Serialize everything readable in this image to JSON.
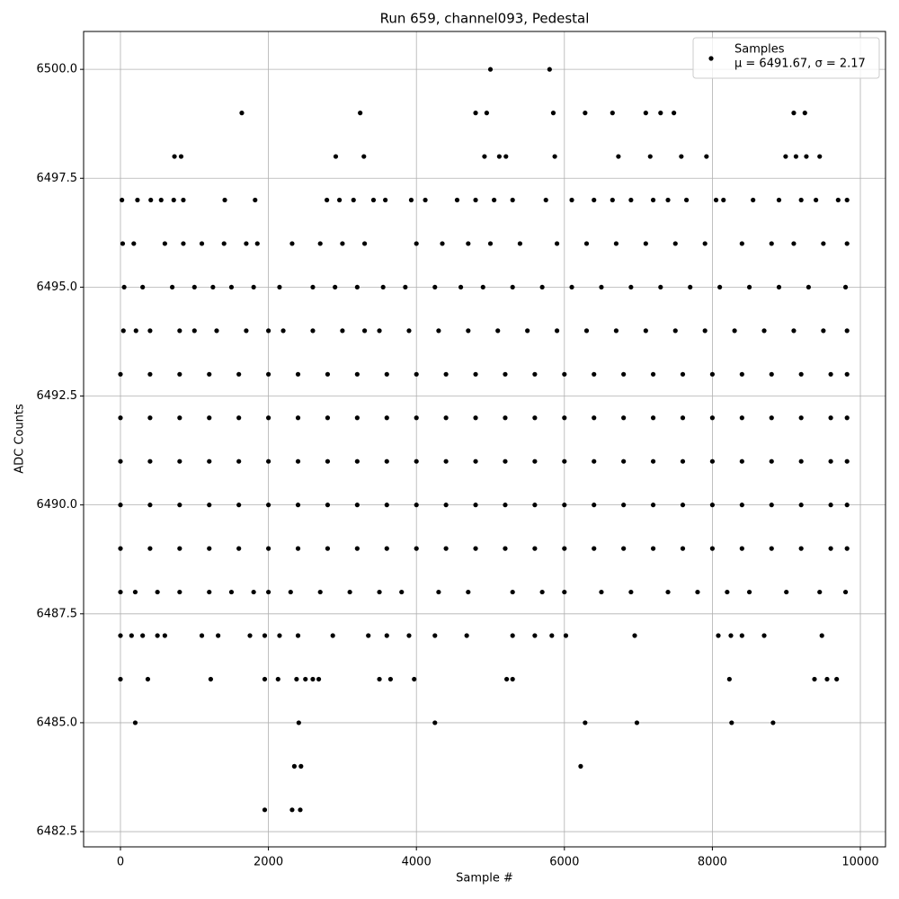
{
  "chart_data": {
    "type": "scatter",
    "title": "Run 659, channel093, Pedestal",
    "x_label": "Sample #",
    "y_label": "ADC Counts",
    "series_name": "Samples",
    "annotation": "μ = 6491.67, σ = 2.17",
    "color": "#000000",
    "grid": true,
    "legend": "upper right",
    "xlim": [
      -498,
      10340
    ],
    "ylim": [
      6482.15,
      6500.87
    ],
    "xticks": [
      0,
      2000,
      4000,
      6000,
      8000,
      10000
    ],
    "yticks": [
      {
        "value": 6482.5,
        "label": "6482.5"
      },
      {
        "value": 6485,
        "label": "6485.0"
      },
      {
        "value": 6487.5,
        "label": "6487.5"
      },
      {
        "value": 6490,
        "label": "6490.0"
      },
      {
        "value": 6492.5,
        "label": "6492.5"
      },
      {
        "value": 6495,
        "label": "6495.0"
      },
      {
        "value": 6497.5,
        "label": "6497.5"
      },
      {
        "value": 6500,
        "label": "6500.0"
      }
    ],
    "points": [
      [
        5000,
        6500
      ],
      [
        5800,
        6500
      ],
      [
        1640,
        6499
      ],
      [
        3240,
        6499
      ],
      [
        4800,
        6499
      ],
      [
        4950,
        6499
      ],
      [
        5850,
        6499
      ],
      [
        6280,
        6499
      ],
      [
        6650,
        6499
      ],
      [
        7100,
        6499
      ],
      [
        7300,
        6499
      ],
      [
        7480,
        6499
      ],
      [
        9100,
        6499
      ],
      [
        9250,
        6499
      ],
      [
        730,
        6498
      ],
      [
        820,
        6498
      ],
      [
        2910,
        6498
      ],
      [
        3290,
        6498
      ],
      [
        4920,
        6498
      ],
      [
        5120,
        6498
      ],
      [
        5210,
        6498
      ],
      [
        5870,
        6498
      ],
      [
        6730,
        6498
      ],
      [
        7160,
        6498
      ],
      [
        7580,
        6498
      ],
      [
        7920,
        6498
      ],
      [
        8990,
        6498
      ],
      [
        9130,
        6498
      ],
      [
        9270,
        6498
      ],
      [
        9450,
        6498
      ],
      [
        20,
        6497
      ],
      [
        230,
        6497
      ],
      [
        410,
        6497
      ],
      [
        550,
        6497
      ],
      [
        720,
        6497
      ],
      [
        850,
        6497
      ],
      [
        1410,
        6497
      ],
      [
        1820,
        6497
      ],
      [
        2790,
        6497
      ],
      [
        2960,
        6497
      ],
      [
        3150,
        6497
      ],
      [
        3420,
        6497
      ],
      [
        3580,
        6497
      ],
      [
        3930,
        6497
      ],
      [
        4120,
        6497
      ],
      [
        4550,
        6497
      ],
      [
        4800,
        6497
      ],
      [
        5050,
        6497
      ],
      [
        5300,
        6497
      ],
      [
        5750,
        6497
      ],
      [
        6100,
        6497
      ],
      [
        6400,
        6497
      ],
      [
        6650,
        6497
      ],
      [
        6900,
        6497
      ],
      [
        7200,
        6497
      ],
      [
        7400,
        6497
      ],
      [
        7650,
        6497
      ],
      [
        8050,
        6497
      ],
      [
        8150,
        6497
      ],
      [
        8550,
        6497
      ],
      [
        8900,
        6497
      ],
      [
        9200,
        6497
      ],
      [
        9400,
        6497
      ],
      [
        9700,
        6497
      ],
      [
        9820,
        6497
      ],
      [
        30,
        6496
      ],
      [
        180,
        6496
      ],
      [
        600,
        6496
      ],
      [
        850,
        6496
      ],
      [
        1100,
        6496
      ],
      [
        1400,
        6496
      ],
      [
        1700,
        6496
      ],
      [
        1850,
        6496
      ],
      [
        2320,
        6496
      ],
      [
        2700,
        6496
      ],
      [
        3000,
        6496
      ],
      [
        3300,
        6496
      ],
      [
        4000,
        6496
      ],
      [
        4350,
        6496
      ],
      [
        4700,
        6496
      ],
      [
        5000,
        6496
      ],
      [
        5400,
        6496
      ],
      [
        5900,
        6496
      ],
      [
        6300,
        6496
      ],
      [
        6700,
        6496
      ],
      [
        7100,
        6496
      ],
      [
        7500,
        6496
      ],
      [
        7900,
        6496
      ],
      [
        8400,
        6496
      ],
      [
        8800,
        6496
      ],
      [
        9100,
        6496
      ],
      [
        9500,
        6496
      ],
      [
        9820,
        6496
      ],
      [
        50,
        6495
      ],
      [
        300,
        6495
      ],
      [
        700,
        6495
      ],
      [
        1000,
        6495
      ],
      [
        1250,
        6495
      ],
      [
        1500,
        6495
      ],
      [
        1800,
        6495
      ],
      [
        2150,
        6495
      ],
      [
        2600,
        6495
      ],
      [
        2900,
        6495
      ],
      [
        3200,
        6495
      ],
      [
        3550,
        6495
      ],
      [
        3850,
        6495
      ],
      [
        4250,
        6495
      ],
      [
        4600,
        6495
      ],
      [
        4900,
        6495
      ],
      [
        5300,
        6495
      ],
      [
        5700,
        6495
      ],
      [
        6100,
        6495
      ],
      [
        6500,
        6495
      ],
      [
        6900,
        6495
      ],
      [
        7300,
        6495
      ],
      [
        7700,
        6495
      ],
      [
        8100,
        6495
      ],
      [
        8500,
        6495
      ],
      [
        8900,
        6495
      ],
      [
        9300,
        6495
      ],
      [
        9800,
        6495
      ],
      [
        40,
        6494
      ],
      [
        210,
        6494
      ],
      [
        400,
        6494
      ],
      [
        800,
        6494
      ],
      [
        1000,
        6494
      ],
      [
        1300,
        6494
      ],
      [
        1700,
        6494
      ],
      [
        2000,
        6494
      ],
      [
        2200,
        6494
      ],
      [
        2600,
        6494
      ],
      [
        3000,
        6494
      ],
      [
        3300,
        6494
      ],
      [
        3500,
        6494
      ],
      [
        3900,
        6494
      ],
      [
        4300,
        6494
      ],
      [
        4700,
        6494
      ],
      [
        5100,
        6494
      ],
      [
        5500,
        6494
      ],
      [
        5900,
        6494
      ],
      [
        6300,
        6494
      ],
      [
        6700,
        6494
      ],
      [
        7100,
        6494
      ],
      [
        7500,
        6494
      ],
      [
        7900,
        6494
      ],
      [
        8300,
        6494
      ],
      [
        8700,
        6494
      ],
      [
        9100,
        6494
      ],
      [
        9500,
        6494
      ],
      [
        9820,
        6494
      ],
      [
        0,
        6493
      ],
      [
        400,
        6493
      ],
      [
        800,
        6493
      ],
      [
        1200,
        6493
      ],
      [
        1600,
        6493
      ],
      [
        2000,
        6493
      ],
      [
        2400,
        6493
      ],
      [
        2800,
        6493
      ],
      [
        3200,
        6493
      ],
      [
        3600,
        6493
      ],
      [
        4000,
        6493
      ],
      [
        4400,
        6493
      ],
      [
        4800,
        6493
      ],
      [
        5200,
        6493
      ],
      [
        5600,
        6493
      ],
      [
        6000,
        6493
      ],
      [
        6400,
        6493
      ],
      [
        6800,
        6493
      ],
      [
        7200,
        6493
      ],
      [
        7600,
        6493
      ],
      [
        8000,
        6493
      ],
      [
        8400,
        6493
      ],
      [
        8800,
        6493
      ],
      [
        9200,
        6493
      ],
      [
        9600,
        6493
      ],
      [
        9820,
        6493
      ],
      [
        0,
        6492
      ],
      [
        400,
        6492
      ],
      [
        800,
        6492
      ],
      [
        1200,
        6492
      ],
      [
        1600,
        6492
      ],
      [
        2000,
        6492
      ],
      [
        2400,
        6492
      ],
      [
        2800,
        6492
      ],
      [
        3200,
        6492
      ],
      [
        3600,
        6492
      ],
      [
        4000,
        6492
      ],
      [
        4400,
        6492
      ],
      [
        4800,
        6492
      ],
      [
        5200,
        6492
      ],
      [
        5600,
        6492
      ],
      [
        6000,
        6492
      ],
      [
        6400,
        6492
      ],
      [
        6800,
        6492
      ],
      [
        7200,
        6492
      ],
      [
        7600,
        6492
      ],
      [
        8000,
        6492
      ],
      [
        8400,
        6492
      ],
      [
        8800,
        6492
      ],
      [
        9200,
        6492
      ],
      [
        9600,
        6492
      ],
      [
        9820,
        6492
      ],
      [
        0,
        6491
      ],
      [
        400,
        6491
      ],
      [
        800,
        6491
      ],
      [
        1200,
        6491
      ],
      [
        1600,
        6491
      ],
      [
        2000,
        6491
      ],
      [
        2400,
        6491
      ],
      [
        2800,
        6491
      ],
      [
        3200,
        6491
      ],
      [
        3600,
        6491
      ],
      [
        4000,
        6491
      ],
      [
        4400,
        6491
      ],
      [
        4800,
        6491
      ],
      [
        5200,
        6491
      ],
      [
        5600,
        6491
      ],
      [
        6000,
        6491
      ],
      [
        6400,
        6491
      ],
      [
        6800,
        6491
      ],
      [
        7200,
        6491
      ],
      [
        7600,
        6491
      ],
      [
        8000,
        6491
      ],
      [
        8400,
        6491
      ],
      [
        8800,
        6491
      ],
      [
        9200,
        6491
      ],
      [
        9600,
        6491
      ],
      [
        9820,
        6491
      ],
      [
        0,
        6490
      ],
      [
        400,
        6490
      ],
      [
        800,
        6490
      ],
      [
        1200,
        6490
      ],
      [
        1600,
        6490
      ],
      [
        2000,
        6490
      ],
      [
        2400,
        6490
      ],
      [
        2800,
        6490
      ],
      [
        3200,
        6490
      ],
      [
        3600,
        6490
      ],
      [
        4000,
        6490
      ],
      [
        4400,
        6490
      ],
      [
        4800,
        6490
      ],
      [
        5200,
        6490
      ],
      [
        5600,
        6490
      ],
      [
        6000,
        6490
      ],
      [
        6400,
        6490
      ],
      [
        6800,
        6490
      ],
      [
        7200,
        6490
      ],
      [
        7600,
        6490
      ],
      [
        8000,
        6490
      ],
      [
        8400,
        6490
      ],
      [
        8800,
        6490
      ],
      [
        9200,
        6490
      ],
      [
        9600,
        6490
      ],
      [
        9820,
        6490
      ],
      [
        0,
        6489
      ],
      [
        400,
        6489
      ],
      [
        800,
        6489
      ],
      [
        1200,
        6489
      ],
      [
        1600,
        6489
      ],
      [
        2000,
        6489
      ],
      [
        2400,
        6489
      ],
      [
        2800,
        6489
      ],
      [
        3200,
        6489
      ],
      [
        3600,
        6489
      ],
      [
        4000,
        6489
      ],
      [
        4400,
        6489
      ],
      [
        4800,
        6489
      ],
      [
        5200,
        6489
      ],
      [
        5600,
        6489
      ],
      [
        6000,
        6489
      ],
      [
        6400,
        6489
      ],
      [
        6800,
        6489
      ],
      [
        7200,
        6489
      ],
      [
        7600,
        6489
      ],
      [
        8000,
        6489
      ],
      [
        8400,
        6489
      ],
      [
        8800,
        6489
      ],
      [
        9200,
        6489
      ],
      [
        9600,
        6489
      ],
      [
        9820,
        6489
      ],
      [
        0,
        6488
      ],
      [
        200,
        6488
      ],
      [
        500,
        6488
      ],
      [
        800,
        6488
      ],
      [
        1200,
        6488
      ],
      [
        1500,
        6488
      ],
      [
        1800,
        6488
      ],
      [
        2000,
        6488
      ],
      [
        2300,
        6488
      ],
      [
        2700,
        6488
      ],
      [
        3100,
        6488
      ],
      [
        3500,
        6488
      ],
      [
        3800,
        6488
      ],
      [
        4300,
        6488
      ],
      [
        4700,
        6488
      ],
      [
        5300,
        6488
      ],
      [
        5700,
        6488
      ],
      [
        6000,
        6488
      ],
      [
        6500,
        6488
      ],
      [
        6900,
        6488
      ],
      [
        7400,
        6488
      ],
      [
        7800,
        6488
      ],
      [
        8200,
        6488
      ],
      [
        8500,
        6488
      ],
      [
        9000,
        6488
      ],
      [
        9450,
        6488
      ],
      [
        9800,
        6488
      ],
      [
        0,
        6487
      ],
      [
        150,
        6487
      ],
      [
        300,
        6487
      ],
      [
        500,
        6487
      ],
      [
        600,
        6487
      ],
      [
        1100,
        6487
      ],
      [
        1320,
        6487
      ],
      [
        1750,
        6487
      ],
      [
        1950,
        6487
      ],
      [
        2150,
        6487
      ],
      [
        2400,
        6487
      ],
      [
        2870,
        6487
      ],
      [
        3350,
        6487
      ],
      [
        3600,
        6487
      ],
      [
        3900,
        6487
      ],
      [
        4250,
        6487
      ],
      [
        4680,
        6487
      ],
      [
        5300,
        6487
      ],
      [
        5600,
        6487
      ],
      [
        5830,
        6487
      ],
      [
        6020,
        6487
      ],
      [
        6950,
        6487
      ],
      [
        8080,
        6487
      ],
      [
        8250,
        6487
      ],
      [
        8400,
        6487
      ],
      [
        8700,
        6487
      ],
      [
        9480,
        6487
      ],
      [
        0,
        6486
      ],
      [
        370,
        6486
      ],
      [
        1220,
        6486
      ],
      [
        1950,
        6486
      ],
      [
        2130,
        6486
      ],
      [
        2380,
        6486
      ],
      [
        2500,
        6486
      ],
      [
        2600,
        6486
      ],
      [
        2680,
        6486
      ],
      [
        3500,
        6486
      ],
      [
        3650,
        6486
      ],
      [
        3970,
        6486
      ],
      [
        5220,
        6486
      ],
      [
        5300,
        6486
      ],
      [
        8230,
        6486
      ],
      [
        9380,
        6486
      ],
      [
        9550,
        6486
      ],
      [
        9680,
        6486
      ],
      [
        200,
        6485
      ],
      [
        2410,
        6485
      ],
      [
        4250,
        6485
      ],
      [
        6280,
        6485
      ],
      [
        6980,
        6485
      ],
      [
        8260,
        6485
      ],
      [
        8820,
        6485
      ],
      [
        2350,
        6484
      ],
      [
        2440,
        6484
      ],
      [
        6220,
        6484
      ],
      [
        1950,
        6483
      ],
      [
        2320,
        6483
      ],
      [
        2430,
        6483
      ]
    ]
  }
}
